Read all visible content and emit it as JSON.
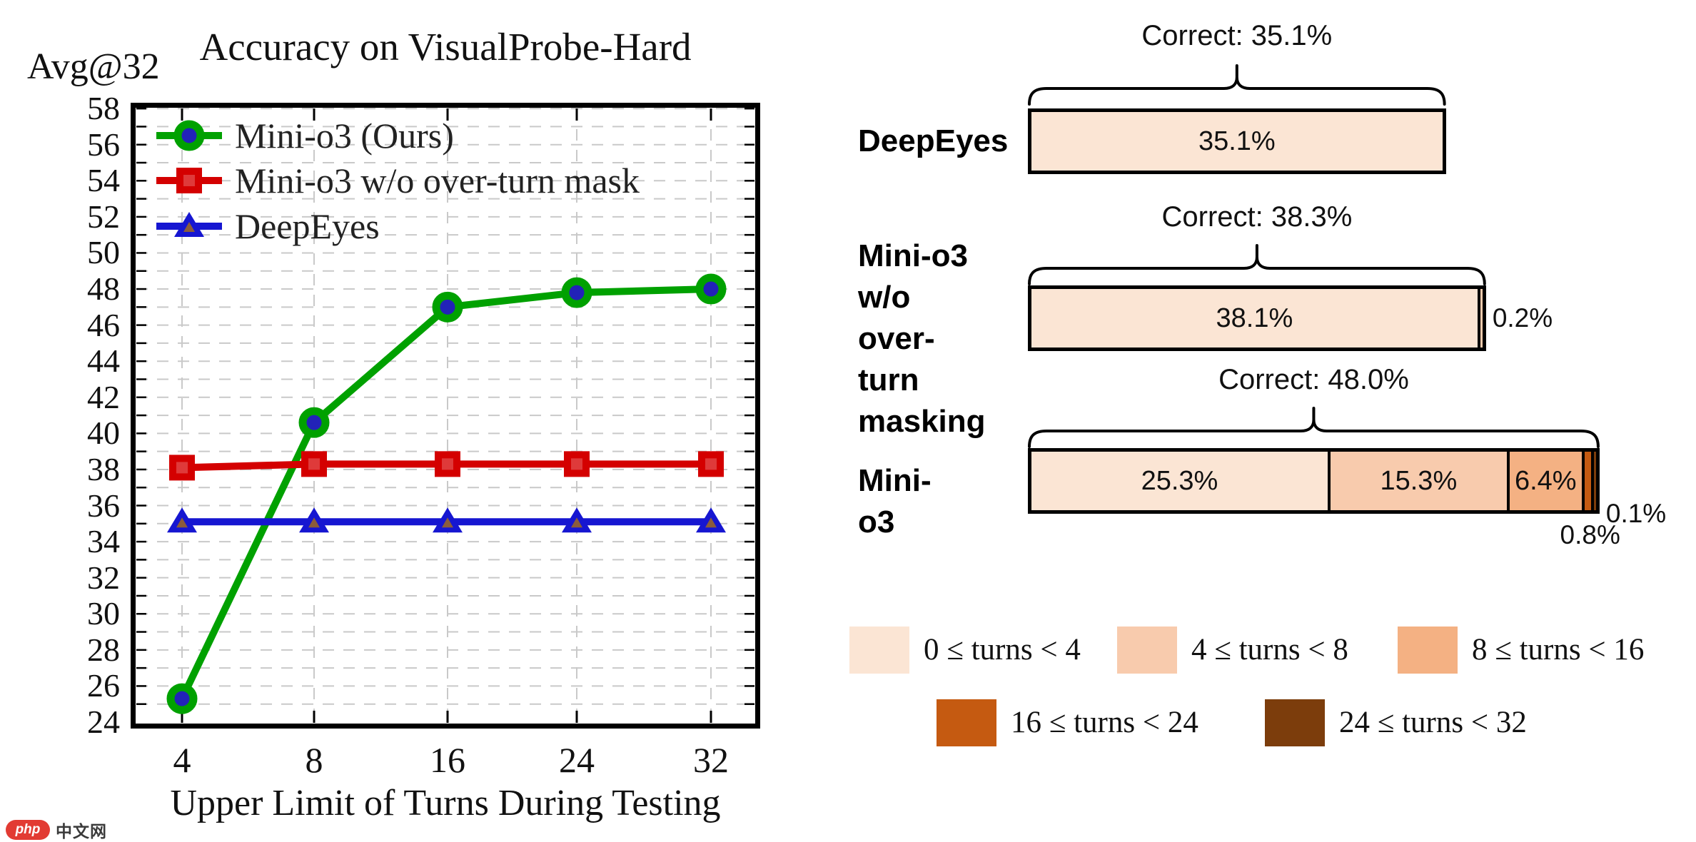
{
  "watermark": {
    "logo_text": "php",
    "site_text": "中文网"
  },
  "colors": {
    "grid": "#C9C9C9",
    "axis": "#000000",
    "watermark_red": "#E23B33"
  },
  "chart_data": [
    {
      "type": "line",
      "title": "Accuracy on VisualProbe-Hard",
      "corner_label": "Avg@32",
      "xlabel": "Upper Limit of Turns During Testing",
      "ylabel": "Avg@32 accuracy",
      "x_categories": [
        "4",
        "8",
        "16",
        "24",
        "32"
      ],
      "ylim": [
        24,
        58
      ],
      "ytick_labels": [
        24,
        26,
        28,
        30,
        32,
        34,
        36,
        38,
        40,
        42,
        44,
        46,
        48,
        50,
        52,
        54,
        56,
        58
      ],
      "grid": true,
      "legend_position": "top-left-inside",
      "series": [
        {
          "name": "Mini-o3 (Ours)",
          "color": "#00A100",
          "marker": "circle",
          "marker_inner": "#2222B8",
          "values": [
            25.3,
            40.6,
            47.0,
            47.8,
            48.0
          ]
        },
        {
          "name": "Mini-o3 w/o over-turn mask",
          "color": "#D40000",
          "marker": "square",
          "marker_inner": "#DF3A3A",
          "values": [
            38.1,
            38.3,
            38.3,
            38.3,
            38.3
          ]
        },
        {
          "name": "DeepEyes",
          "color": "#1616D1",
          "marker": "triangle",
          "marker_inner": "#8B5C3C",
          "values": [
            35.1,
            35.1,
            35.1,
            35.1,
            35.1
          ]
        }
      ]
    },
    {
      "type": "stacked-bar-horizontal",
      "value_unit": "%",
      "rows": [
        {
          "label_lines": [
            "DeepEyes"
          ],
          "correct_label": "Correct: 35.1%",
          "correct_total": 35.1,
          "segments": [
            {
              "bucket": 0,
              "value": 35.1,
              "label": "35.1%",
              "label_pos": "inside"
            }
          ]
        },
        {
          "label_lines": [
            "Mini-o3",
            "w/o",
            "over-turn",
            "masking"
          ],
          "correct_label": "Correct: 38.3%",
          "correct_total": 38.3,
          "segments": [
            {
              "bucket": 0,
              "value": 38.1,
              "label": "38.1%",
              "label_pos": "inside"
            },
            {
              "bucket": 1,
              "value": 0.2,
              "label": "0.2%",
              "label_pos": "right"
            }
          ]
        },
        {
          "label_lines": [
            "Mini-o3"
          ],
          "correct_label": "Correct: 48.0%",
          "correct_total": 48.0,
          "segments": [
            {
              "bucket": 0,
              "value": 25.3,
              "label": "25.3%",
              "label_pos": "inside"
            },
            {
              "bucket": 1,
              "value": 15.3,
              "label": "15.3%",
              "label_pos": "inside"
            },
            {
              "bucket": 2,
              "value": 6.4,
              "label": "6.4%",
              "label_pos": "inside"
            },
            {
              "bucket": 3,
              "value": 0.8,
              "label": "0.8%",
              "label_pos": "below"
            },
            {
              "bucket": 4,
              "value": 0.1,
              "label": "0.1%",
              "label_pos": "corner"
            }
          ]
        }
      ],
      "legend": [
        {
          "label": "0 ≤ turns < 4",
          "color": "#FBE5D4"
        },
        {
          "label": "4 ≤ turns < 8",
          "color": "#F8CBAD"
        },
        {
          "label": "8 ≤ turns < 16",
          "color": "#F4B183"
        },
        {
          "label": "16 ≤ turns < 24",
          "color": "#C55A11"
        },
        {
          "label": "24 ≤ turns < 32",
          "color": "#7C3D0C"
        }
      ]
    }
  ]
}
